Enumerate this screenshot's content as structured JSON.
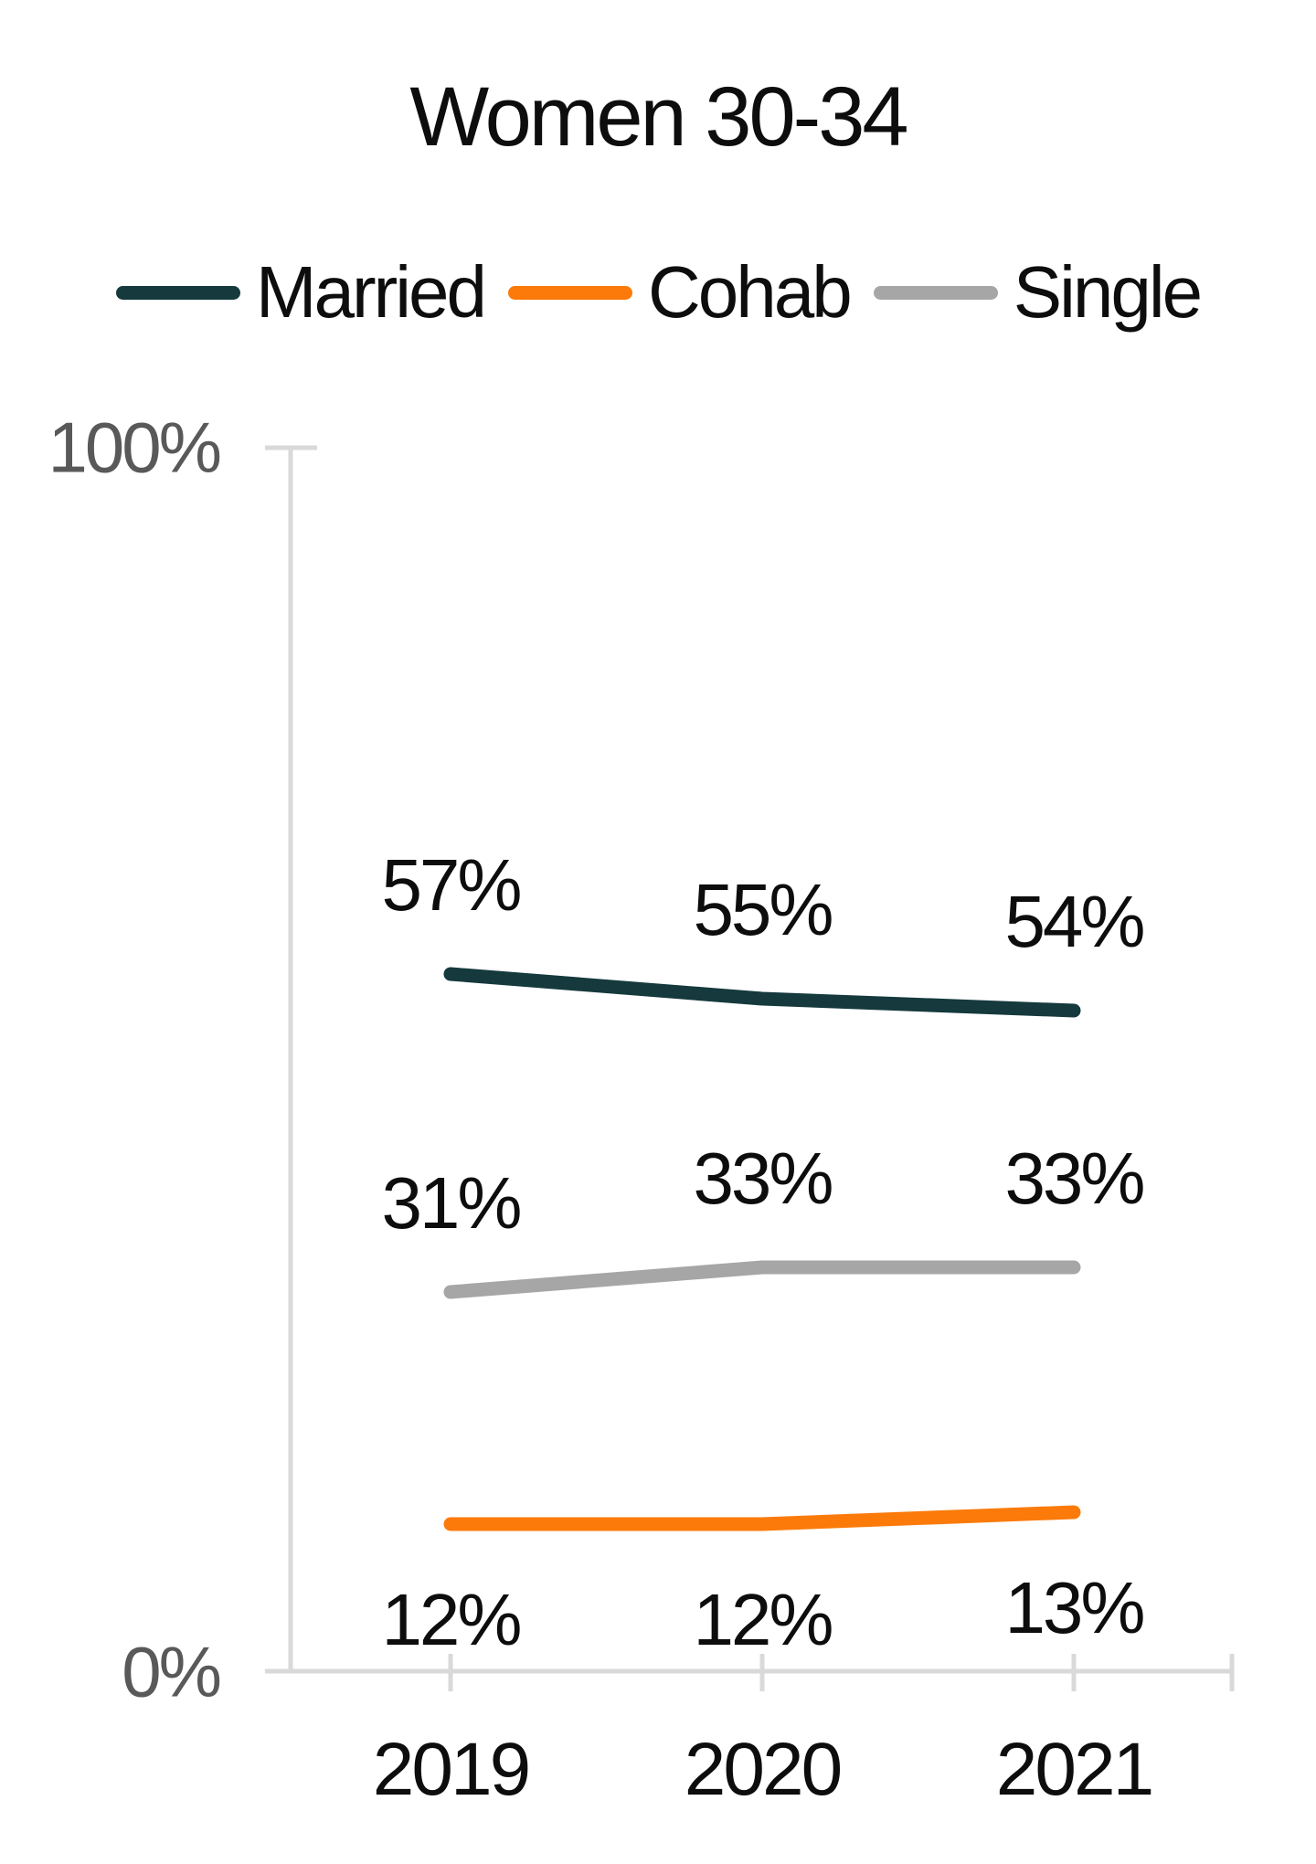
{
  "title": "Women 30-34",
  "legend": {
    "items": [
      {
        "name": "Married",
        "color": "#15393d"
      },
      {
        "name": "Cohab",
        "color": "#fb7a0a"
      },
      {
        "name": "Single",
        "color": "#a6a6a6"
      }
    ]
  },
  "y_axis": {
    "top_label": "100%",
    "bottom_label": "0%",
    "label_color": "#595959"
  },
  "chart_data": {
    "type": "line",
    "title": "Women 30-34",
    "categories": [
      "2019",
      "2020",
      "2021"
    ],
    "series": [
      {
        "name": "Married",
        "color": "#15393d",
        "values": [
          57,
          55,
          54
        ],
        "labels": [
          "57%",
          "55%",
          "54%"
        ],
        "label_position": "above"
      },
      {
        "name": "Cohab",
        "color": "#fb7a0a",
        "values": [
          12,
          12,
          13
        ],
        "labels": [
          "12%",
          "12%",
          "13%"
        ],
        "label_position": "below"
      },
      {
        "name": "Single",
        "color": "#a6a6a6",
        "values": [
          31,
          33,
          33
        ],
        "labels": [
          "31%",
          "33%",
          "33%"
        ],
        "label_position": "above"
      }
    ],
    "ylim": [
      0,
      100
    ],
    "y_tick_labels": [
      "0%",
      "100%"
    ],
    "grid": false,
    "legend_position": "top",
    "axis_color": "#d9d9d9",
    "data_label_color": "#0d0d0d"
  }
}
